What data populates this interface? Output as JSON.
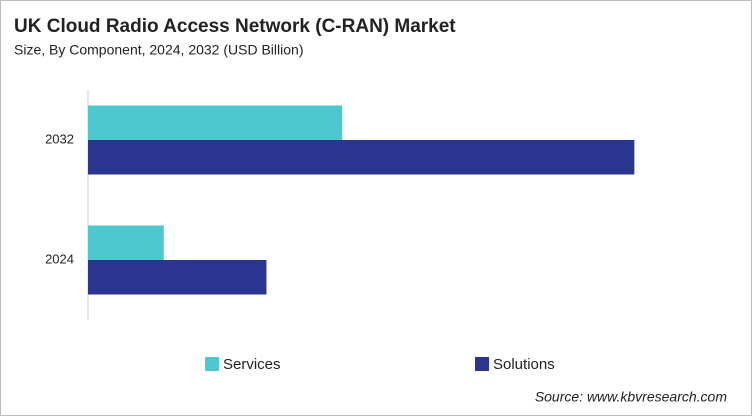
{
  "chart_data": {
    "type": "hbar",
    "title": "UK Cloud Radio Access Network (C-RAN) Market",
    "subtitle": "Size, By Component, 2024, 2032 (USD Billion)",
    "categories": [
      "2024",
      "2032"
    ],
    "series": [
      {
        "name": "Services",
        "color": "#4ec8d0",
        "values": [
          0.076,
          0.255
        ]
      },
      {
        "name": "Solutions",
        "color": "#2a3590",
        "values": [
          0.179,
          0.548
        ]
      }
    ],
    "xlim": [
      0,
      0.66
    ],
    "source": "Source: www.kbvresearch.com"
  }
}
